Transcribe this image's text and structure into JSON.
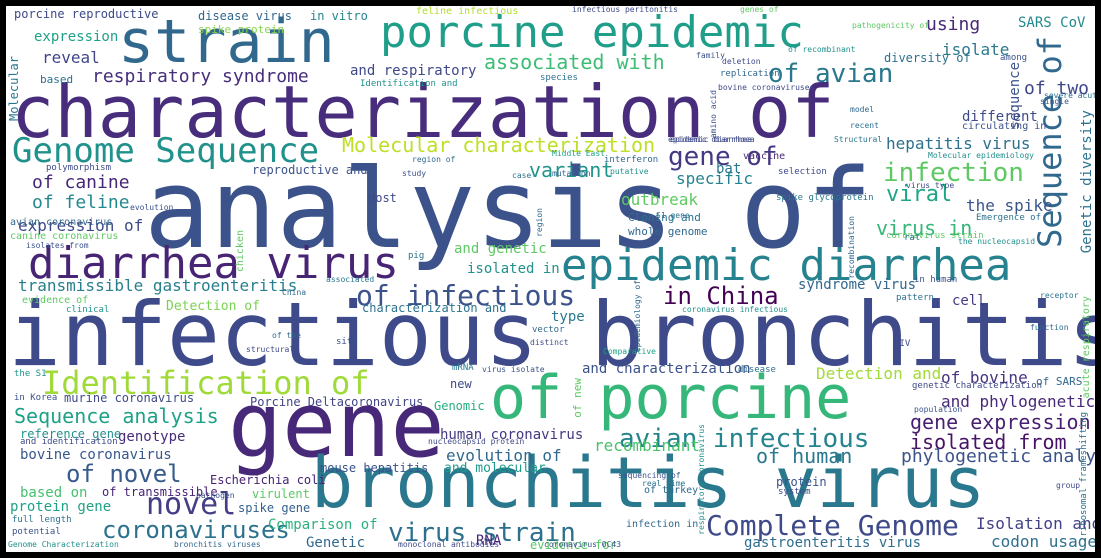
{
  "cloud": {
    "words": [
      {
        "id": "w0",
        "text": "characterization of",
        "color": "#472d7b"
      },
      {
        "id": "w1",
        "text": "analysis of",
        "color": "#3b528b"
      },
      {
        "id": "w2",
        "text": "infectious bronchitis",
        "color": "#3e4a89"
      },
      {
        "id": "w3",
        "text": "gene",
        "color": "#482878"
      },
      {
        "id": "w4",
        "text": "bronchitis virus",
        "color": "#2a788e"
      },
      {
        "id": "w5",
        "text": "of porcine",
        "color": "#35b779"
      },
      {
        "id": "w6",
        "text": "strain",
        "color": "#31688e"
      },
      {
        "id": "w7",
        "text": "porcine epidemic",
        "color": "#1f9e89"
      },
      {
        "id": "w8",
        "text": "epidemic diarrhea",
        "color": "#26828e"
      },
      {
        "id": "w9",
        "text": "diarrhea virus",
        "color": "#482475"
      },
      {
        "id": "w10",
        "text": "Identification of",
        "color": "#a0da39"
      },
      {
        "id": "w11",
        "text": "Genome Sequence",
        "color": "#21918c"
      },
      {
        "id": "w12",
        "text": "Sequence of",
        "color": "#31688e"
      },
      {
        "id": "w13",
        "text": "Complete Genome",
        "color": "#3e4a89"
      },
      {
        "id": "w14",
        "text": "avian infectious",
        "color": "#25848e"
      },
      {
        "id": "w15",
        "text": "novel",
        "color": "#433e85"
      },
      {
        "id": "w16",
        "text": "of infectious",
        "color": "#3b528b"
      },
      {
        "id": "w17",
        "text": "virus strain",
        "color": "#2d708e"
      },
      {
        "id": "w18",
        "text": "coronaviruses",
        "color": "#2c728e"
      },
      {
        "id": "w19",
        "text": "in China",
        "color": "#440154"
      },
      {
        "id": "w20",
        "text": "of avian",
        "color": "#2a788e"
      },
      {
        "id": "w21",
        "text": "gene of",
        "color": "#443983"
      },
      {
        "id": "w22",
        "text": "infection",
        "color": "#5ec962"
      },
      {
        "id": "w23",
        "text": "of novel",
        "color": "#375b8d"
      },
      {
        "id": "w24",
        "text": "of two",
        "color": "#3f4788"
      },
      {
        "id": "w25",
        "text": "Molecular characterization",
        "color": "#bddf26"
      },
      {
        "id": "w26",
        "text": "respiratory syndrome",
        "color": "#472d7b"
      },
      {
        "id": "w27",
        "text": "associated with",
        "color": "#3dbc74"
      },
      {
        "id": "w28",
        "text": "Sequence analysis",
        "color": "#1fa187"
      },
      {
        "id": "w29",
        "text": "gene expression",
        "color": "#481f70"
      },
      {
        "id": "w30",
        "text": "isolated from",
        "color": "#471365"
      },
      {
        "id": "w31",
        "text": "of human",
        "color": "#2a788e"
      },
      {
        "id": "w32",
        "text": "phylogenetic analysis",
        "color": "#3b528b"
      },
      {
        "id": "w33",
        "text": "Isolation and",
        "color": "#424086"
      },
      {
        "id": "w34",
        "text": "codon usage",
        "color": "#2e6f8e"
      },
      {
        "id": "w35",
        "text": "Detection and",
        "color": "#a2da37"
      },
      {
        "id": "w36",
        "text": "of bovine",
        "color": "#46337e"
      },
      {
        "id": "w37",
        "text": "and phylogenetic",
        "color": "#482878"
      },
      {
        "id": "w38",
        "text": "virus in",
        "color": "#35b779"
      },
      {
        "id": "w39",
        "text": "the spike",
        "color": "#3a548c"
      },
      {
        "id": "w40",
        "text": "hepatitis virus",
        "color": "#2d708e"
      },
      {
        "id": "w41",
        "text": "viral",
        "color": "#20a486"
      },
      {
        "id": "w42",
        "text": "specific",
        "color": "#25838e"
      },
      {
        "id": "w43",
        "text": "variant",
        "color": "#1f958b"
      },
      {
        "id": "w44",
        "text": "outbreak",
        "color": "#5ec962"
      },
      {
        "id": "w45",
        "text": "and characterization",
        "color": "#3b528b"
      },
      {
        "id": "w46",
        "text": "recombinant",
        "color": "#4ac16d"
      },
      {
        "id": "w47",
        "text": "evolution of",
        "color": "#31688e"
      },
      {
        "id": "w48",
        "text": "and molecular",
        "color": "#1e9b8a"
      },
      {
        "id": "w49",
        "text": "of canine",
        "color": "#482677"
      },
      {
        "id": "w50",
        "text": "of feline",
        "color": "#23898e"
      },
      {
        "id": "w51",
        "text": "expression of",
        "color": "#3e4989"
      },
      {
        "id": "w52",
        "text": "transmissible gastroenteritis",
        "color": "#277f8e"
      },
      {
        "id": "w53",
        "text": "reveal",
        "color": "#404688"
      },
      {
        "id": "w54",
        "text": "expression",
        "color": "#1fa088"
      },
      {
        "id": "w55",
        "text": "isolate",
        "color": "#2a788e"
      },
      {
        "id": "w56",
        "text": "using",
        "color": "#482878"
      },
      {
        "id": "w57",
        "text": "SARS CoV",
        "color": "#238a8d"
      },
      {
        "id": "w58",
        "text": "sequence",
        "color": "#3b528b"
      },
      {
        "id": "w59",
        "text": "different",
        "color": "#3e4a89"
      },
      {
        "id": "w60",
        "text": "Genetic diversity",
        "color": "#2c728e"
      },
      {
        "id": "w61",
        "text": "syndrome virus",
        "color": "#31688e"
      },
      {
        "id": "w62",
        "text": "cell",
        "color": "#443a83"
      },
      {
        "id": "w63",
        "text": "type",
        "color": "#2a788e"
      },
      {
        "id": "w64",
        "text": "isolated in",
        "color": "#21918c"
      },
      {
        "id": "w65",
        "text": "and genetic",
        "color": "#5ec962"
      },
      {
        "id": "w66",
        "text": "and respiratory",
        "color": "#3f4889"
      },
      {
        "id": "w67",
        "text": "genotype",
        "color": "#472c7a"
      },
      {
        "id": "w68",
        "text": "bovine coronavirus",
        "color": "#38588c"
      },
      {
        "id": "w69",
        "text": "human coronavirus",
        "color": "#453882"
      },
      {
        "id": "w70",
        "text": "Porcine Deltacoronavirus",
        "color": "#414487"
      },
      {
        "id": "w71",
        "text": "Genomic",
        "color": "#27ad81"
      },
      {
        "id": "w72",
        "text": "new",
        "color": "#3e4a89"
      },
      {
        "id": "w73",
        "text": "Comparison of",
        "color": "#2cb17e"
      },
      {
        "id": "w74",
        "text": "Genetic",
        "color": "#31688e"
      },
      {
        "id": "w75",
        "text": "RNA",
        "color": "#482677"
      },
      {
        "id": "w76",
        "text": "evidence for",
        "color": "#56c667"
      },
      {
        "id": "w77",
        "text": "gastroenteritis virus",
        "color": "#2e6e8e"
      },
      {
        "id": "w78",
        "text": "based on",
        "color": "#46c06f"
      },
      {
        "id": "w79",
        "text": "protein gene",
        "color": "#1fa187"
      },
      {
        "id": "w80",
        "text": "of transmissible",
        "color": "#482475"
      },
      {
        "id": "w81",
        "text": "Detection of",
        "color": "#7ad151"
      },
      {
        "id": "w82",
        "text": "Escherichia coli",
        "color": "#482173"
      },
      {
        "id": "w83",
        "text": "spike gene",
        "color": "#35608d"
      },
      {
        "id": "w84",
        "text": "virulent",
        "color": "#5ec962"
      },
      {
        "id": "w85",
        "text": "mouse hepatitis",
        "color": "#3b528b"
      },
      {
        "id": "w86",
        "text": "porcine reproductive",
        "color": "#3e4a89"
      },
      {
        "id": "w87",
        "text": "disease virus",
        "color": "#31688e"
      },
      {
        "id": "w88",
        "text": "in vitro",
        "color": "#25858e"
      },
      {
        "id": "w89",
        "text": "feline infectious",
        "color": "#b2dd2d"
      },
      {
        "id": "w90",
        "text": "Molecular",
        "color": "#2a788e"
      },
      {
        "id": "w91",
        "text": "based",
        "color": "#2c728e"
      },
      {
        "id": "w92",
        "text": "spike protein",
        "color": "#86d549"
      },
      {
        "id": "w93",
        "text": "reproductive and",
        "color": "#3b528b"
      },
      {
        "id": "w94",
        "text": "Host",
        "color": "#3e4a89"
      },
      {
        "id": "w95",
        "text": "Cloning and",
        "color": "#2c728e"
      },
      {
        "id": "w96",
        "text": "whole genome",
        "color": "#31688e"
      },
      {
        "id": "w97",
        "text": "canine coronavirus",
        "color": "#5ec962"
      },
      {
        "id": "w98",
        "text": "avian coronavirus",
        "color": "#31688e"
      },
      {
        "id": "w99",
        "text": "reference gene",
        "color": "#21918c"
      },
      {
        "id": "w100",
        "text": "in Korea",
        "color": "#3b528b"
      },
      {
        "id": "w101",
        "text": "murine coronavirus",
        "color": "#3e4a89"
      },
      {
        "id": "w102",
        "text": "characterization and",
        "color": "#2c728e"
      },
      {
        "id": "w103",
        "text": "bat",
        "color": "#2a788e"
      },
      {
        "id": "w104",
        "text": "vaccine",
        "color": "#482878"
      },
      {
        "id": "w105",
        "text": "epidemic diarrhea",
        "color": "#3e4a89"
      },
      {
        "id": "w106",
        "text": "Middle East",
        "color": "#1fa187"
      },
      {
        "id": "w107",
        "text": "interferon",
        "color": "#31688e"
      },
      {
        "id": "w108",
        "text": "polymorphism",
        "color": "#3e4a89"
      },
      {
        "id": "w109",
        "text": "study",
        "color": "#3b528b"
      },
      {
        "id": "w110",
        "text": "case",
        "color": "#2c728e"
      },
      {
        "id": "w111",
        "text": "mutation",
        "color": "#31688e"
      },
      {
        "id": "w112",
        "text": "putative",
        "color": "#21918c"
      },
      {
        "id": "w113",
        "text": "selection",
        "color": "#3e4a89"
      },
      {
        "id": "w114",
        "text": "spike glycoprotein",
        "color": "#2a788e"
      },
      {
        "id": "w115",
        "text": "coronavirus strain",
        "color": "#5ec962"
      },
      {
        "id": "w116",
        "text": "the nucleocapsid",
        "color": "#21918c"
      },
      {
        "id": "w117",
        "text": "in human",
        "color": "#3b528b"
      },
      {
        "id": "w118",
        "text": "pattern",
        "color": "#2c728e"
      },
      {
        "id": "w119",
        "text": "HIV",
        "color": "#3e4a89"
      },
      {
        "id": "w120",
        "text": "function",
        "color": "#31688e"
      },
      {
        "id": "w121",
        "text": "mRNA",
        "color": "#2a788e"
      },
      {
        "id": "w122",
        "text": "virus isolate",
        "color": "#3b528b"
      },
      {
        "id": "w123",
        "text": "disease",
        "color": "#2c728e"
      },
      {
        "id": "w124",
        "text": "Comparative",
        "color": "#1fa187"
      },
      {
        "id": "w125",
        "text": "vector",
        "color": "#31688e"
      },
      {
        "id": "w126",
        "text": "distinct",
        "color": "#3e4a89"
      },
      {
        "id": "w127",
        "text": "site",
        "color": "#3b528b"
      },
      {
        "id": "w128",
        "text": "pig",
        "color": "#2c728e"
      },
      {
        "id": "w129",
        "text": "structural",
        "color": "#3e4a89"
      },
      {
        "id": "w130",
        "text": "China",
        "color": "#31688e"
      },
      {
        "id": "w131",
        "text": "associated",
        "color": "#2a788e"
      },
      {
        "id": "w132",
        "text": "evidence of",
        "color": "#5ec962"
      },
      {
        "id": "w133",
        "text": "clinical",
        "color": "#21918c"
      },
      {
        "id": "w134",
        "text": "isolates from",
        "color": "#3b528b"
      },
      {
        "id": "w135",
        "text": "Emergence of",
        "color": "#2c728e"
      },
      {
        "id": "w136",
        "text": "recombination",
        "color": "#31688e"
      },
      {
        "id": "w137",
        "text": "virus type",
        "color": "#3e4a89"
      },
      {
        "id": "w138",
        "text": "Molecular epidemiology",
        "color": "#21918c"
      },
      {
        "id": "w139",
        "text": "circulating in",
        "color": "#3b528b"
      },
      {
        "id": "w140",
        "text": "Structural",
        "color": "#2a788e"
      },
      {
        "id": "w141",
        "text": "epidemic diarrhoea",
        "color": "#3e4a89"
      },
      {
        "id": "w142",
        "text": "region of",
        "color": "#31688e"
      },
      {
        "id": "w143",
        "text": "among",
        "color": "#3b528b"
      },
      {
        "id": "w144",
        "text": "pathogenicity of",
        "color": "#5ec962"
      },
      {
        "id": "w145",
        "text": "diversity of",
        "color": "#2c728e"
      },
      {
        "id": "w146",
        "text": "of recombinant",
        "color": "#21918c"
      },
      {
        "id": "w147",
        "text": "deletion",
        "color": "#3e4a89"
      },
      {
        "id": "w148",
        "text": "family",
        "color": "#3b528b"
      },
      {
        "id": "w149",
        "text": "replication",
        "color": "#31688e"
      },
      {
        "id": "w150",
        "text": "species",
        "color": "#2c728e"
      },
      {
        "id": "w151",
        "text": "Identification and",
        "color": "#21918c"
      },
      {
        "id": "w152",
        "text": "bovine coronaviruses",
        "color": "#3e4a89"
      },
      {
        "id": "w153",
        "text": "amino acid",
        "color": "#3b528b"
      },
      {
        "id": "w154",
        "text": "model",
        "color": "#31688e"
      },
      {
        "id": "w155",
        "text": "recent",
        "color": "#2c728e"
      },
      {
        "id": "w156",
        "text": "infectious peritonitis",
        "color": "#3e4a89"
      },
      {
        "id": "w157",
        "text": "genes of",
        "color": "#5ec962"
      },
      {
        "id": "w158",
        "text": "single",
        "color": "#3b528b"
      },
      {
        "id": "w159",
        "text": "severe acute",
        "color": "#2c728e"
      },
      {
        "id": "w160",
        "text": "acute respiratory",
        "color": "#5ec962"
      },
      {
        "id": "w161",
        "text": "genetic characterization",
        "color": "#3e4a89"
      },
      {
        "id": "w162",
        "text": "of SARS",
        "color": "#31688e"
      },
      {
        "id": "w163",
        "text": "population",
        "color": "#3b528b"
      },
      {
        "id": "w164",
        "text": "receptor",
        "color": "#2c728e"
      },
      {
        "id": "w165",
        "text": "coronavirus infectious",
        "color": "#21918c"
      },
      {
        "id": "w166",
        "text": "epidemiology of",
        "color": "#31688e"
      },
      {
        "id": "w167",
        "text": "of new",
        "color": "#5ec962"
      },
      {
        "id": "w168",
        "text": "sequencing of",
        "color": "#3b528b"
      },
      {
        "id": "w169",
        "text": "nucleocapsid protein",
        "color": "#3e4a89"
      },
      {
        "id": "w170",
        "text": "of turkey",
        "color": "#31688e"
      },
      {
        "id": "w171",
        "text": "real time",
        "color": "#2c728e"
      },
      {
        "id": "w172",
        "text": "respiratory coronavirus",
        "color": "#21918c"
      },
      {
        "id": "w173",
        "text": "protein",
        "color": "#3b528b"
      },
      {
        "id": "w174",
        "text": "system",
        "color": "#3e4a89"
      },
      {
        "id": "w175",
        "text": "infection in",
        "color": "#31688e"
      },
      {
        "id": "w176",
        "text": "full length",
        "color": "#2c728e"
      },
      {
        "id": "w177",
        "text": "potential",
        "color": "#3b528b"
      },
      {
        "id": "w178",
        "text": "Genome Characterization",
        "color": "#21918c"
      },
      {
        "id": "w179",
        "text": "bronchitis viruses",
        "color": "#31688e"
      },
      {
        "id": "w180",
        "text": "monoclonal antibodies",
        "color": "#3e4a89"
      },
      {
        "id": "w181",
        "text": "coronavirus OC43",
        "color": "#3b528b"
      },
      {
        "id": "w182",
        "text": "S1 gene",
        "color": "#2c728e"
      },
      {
        "id": "w183",
        "text": "chicken",
        "color": "#5ec962"
      },
      {
        "id": "w184",
        "text": "region",
        "color": "#31688e"
      },
      {
        "id": "w185",
        "text": "and identification",
        "color": "#3e4a89"
      },
      {
        "id": "w186",
        "text": "pathogen",
        "color": "#3b528b"
      },
      {
        "id": "w187",
        "text": "rat",
        "color": "#2c728e"
      },
      {
        "id": "w188",
        "text": "the S1",
        "color": "#21918c"
      },
      {
        "id": "w189",
        "text": "of the",
        "color": "#31688e"
      },
      {
        "id": "w190",
        "text": "evolution",
        "color": "#3b528b"
      },
      {
        "id": "w191",
        "text": "group",
        "color": "#3e4a89"
      },
      {
        "id": "w192",
        "text": "ribosomal frameshifting",
        "color": "#2c728e"
      }
    ]
  }
}
